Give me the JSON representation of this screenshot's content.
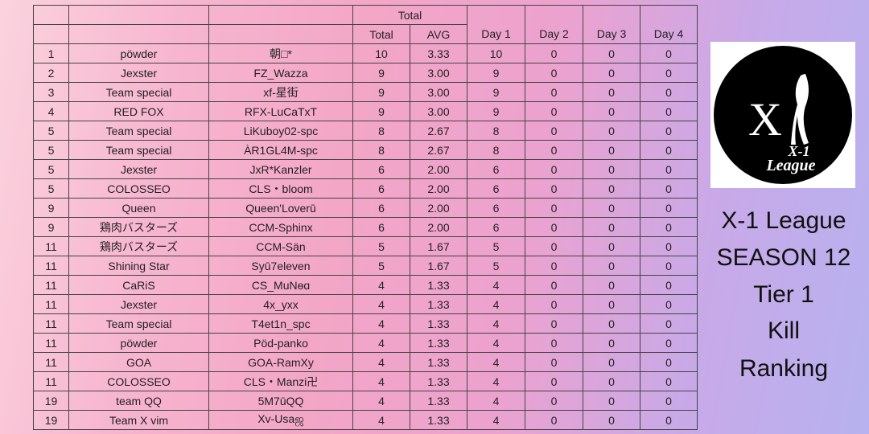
{
  "table": {
    "header": {
      "group": "Total",
      "columns": [
        "Total",
        "AVG",
        "Day 1",
        "Day 2",
        "Day 3",
        "Day 4"
      ]
    },
    "rows": [
      [
        "1",
        "pöwder",
        "朝□*",
        "10",
        "3.33",
        "10",
        "0",
        "0",
        "0"
      ],
      [
        "2",
        "Jexster",
        "FZ_Wazza",
        "9",
        "3.00",
        "9",
        "0",
        "0",
        "0"
      ],
      [
        "3",
        "Team special",
        "xf-星街",
        "9",
        "3.00",
        "9",
        "0",
        "0",
        "0"
      ],
      [
        "4",
        "RED FOX",
        "RFX-LuCaTxT",
        "9",
        "3.00",
        "9",
        "0",
        "0",
        "0"
      ],
      [
        "5",
        "Team special",
        "LiKuboy02-spc",
        "8",
        "2.67",
        "8",
        "0",
        "0",
        "0"
      ],
      [
        "5",
        "Team special",
        "ÀR1GL4M-spc",
        "8",
        "2.67",
        "8",
        "0",
        "0",
        "0"
      ],
      [
        "5",
        "Jexster",
        "JxR*Kanzler",
        "6",
        "2.00",
        "6",
        "0",
        "0",
        "0"
      ],
      [
        "5",
        "COLOSSEO",
        "CLS・bloom",
        "6",
        "2.00",
        "6",
        "0",
        "0",
        "0"
      ],
      [
        "9",
        "Queen",
        "Queen'Loverū",
        "6",
        "2.00",
        "6",
        "0",
        "0",
        "0"
      ],
      [
        "9",
        "鶏肉バスターズ",
        "CCM-Sphinx",
        "6",
        "2.00",
        "6",
        "0",
        "0",
        "0"
      ],
      [
        "11",
        "鶏肉バスターズ",
        "CCM-Sän",
        "5",
        "1.67",
        "5",
        "0",
        "0",
        "0"
      ],
      [
        "11",
        "Shining Star",
        "Syū7eleven",
        "5",
        "1.67",
        "5",
        "0",
        "0",
        "0"
      ],
      [
        "11",
        "CaRiS",
        "CS_MuNɵɑ",
        "4",
        "1.33",
        "4",
        "0",
        "0",
        "0"
      ],
      [
        "11",
        "Jexster",
        "4x_yxx",
        "4",
        "1.33",
        "4",
        "0",
        "0",
        "0"
      ],
      [
        "11",
        "Team special",
        "T4et1n_spc",
        "4",
        "1.33",
        "4",
        "0",
        "0",
        "0"
      ],
      [
        "11",
        "pöwder",
        "Pöd-panko",
        "4",
        "1.33",
        "4",
        "0",
        "0",
        "0"
      ],
      [
        "11",
        "GOA",
        "GOA-RamXy",
        "4",
        "1.33",
        "4",
        "0",
        "0",
        "0"
      ],
      [
        "11",
        "COLOSSEO",
        "CLS・Manzi卍",
        "4",
        "1.33",
        "4",
        "0",
        "0",
        "0"
      ],
      [
        "19",
        "team QQ",
        "5M7ūQQ",
        "4",
        "1.33",
        "4",
        "0",
        "0",
        "0"
      ],
      [
        "19",
        "Team X vim",
        "Xv-Usaஜ",
        "4",
        "1.33",
        "4",
        "0",
        "0",
        "0"
      ]
    ]
  },
  "logo": {
    "mark": "X",
    "line1": "X-1",
    "line2": "League"
  },
  "title": {
    "lines": [
      "X-1 League",
      "SEASON 12",
      "Tier 1",
      "Kill",
      "Ranking"
    ]
  }
}
